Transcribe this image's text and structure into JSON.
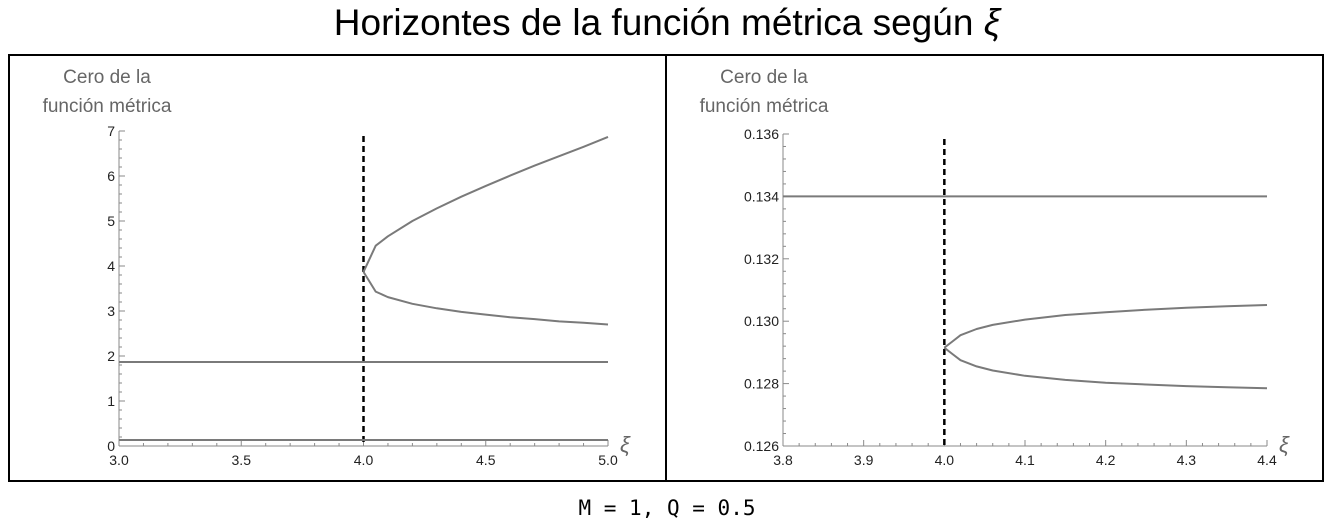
{
  "title_prefix": "Horizontes de la función métrica según ",
  "title_symbol": "ξ",
  "caption": "M = 1, Q = 0.5",
  "colors": {
    "curve": "#7a7a7a",
    "axis": "#8a8a8a",
    "label": "#666666",
    "dashed": "#000000"
  },
  "chart_data": [
    {
      "type": "line",
      "ylabel_lines": [
        "Cero de la",
        "función métrica"
      ],
      "xlabel": "ξ",
      "xlim": [
        3.0,
        5.0
      ],
      "ylim": [
        0,
        7
      ],
      "xticks": [
        3.0,
        3.5,
        4.0,
        4.5,
        5.0
      ],
      "xtick_labels": [
        "3.0",
        "3.5",
        "4.0",
        "4.5",
        "5.0"
      ],
      "yticks": [
        0,
        1,
        2,
        3,
        4,
        5,
        6,
        7
      ],
      "ytick_labels": [
        "0",
        "1",
        "2",
        "3",
        "4",
        "5",
        "6",
        "7"
      ],
      "vline_x": 4.0,
      "series": [
        {
          "x": [
            3.0,
            5.0
          ],
          "y": [
            1.866,
            1.866
          ]
        },
        {
          "x": [
            3.0,
            5.0
          ],
          "y": [
            0.134,
            0.134
          ]
        },
        {
          "x": [
            4.0,
            4.05,
            4.1,
            4.2,
            4.3,
            4.4,
            4.5,
            4.6,
            4.7,
            4.8,
            4.9,
            5.0
          ],
          "y": [
            3.87,
            4.45,
            4.66,
            5.0,
            5.28,
            5.54,
            5.78,
            6.01,
            6.23,
            6.44,
            6.65,
            6.87
          ]
        },
        {
          "x": [
            4.0,
            4.05,
            4.1,
            4.2,
            4.3,
            4.4,
            4.5,
            4.6,
            4.7,
            4.8,
            4.9,
            5.0
          ],
          "y": [
            3.87,
            3.43,
            3.31,
            3.16,
            3.06,
            2.98,
            2.92,
            2.86,
            2.82,
            2.77,
            2.74,
            2.7
          ]
        }
      ]
    },
    {
      "type": "line",
      "ylabel_lines": [
        "Cero de la",
        "función métrica"
      ],
      "xlabel": "ξ",
      "xlim": [
        3.8,
        4.4
      ],
      "ylim": [
        0.126,
        0.136
      ],
      "xticks": [
        3.8,
        3.9,
        4.0,
        4.1,
        4.2,
        4.3,
        4.4
      ],
      "xtick_labels": [
        "3.8",
        "3.9",
        "4.0",
        "4.1",
        "4.2",
        "4.3",
        "4.4"
      ],
      "yticks": [
        0.126,
        0.128,
        0.13,
        0.132,
        0.134,
        0.136
      ],
      "ytick_labels": [
        "0.126",
        "0.128",
        "0.130",
        "0.132",
        "0.134",
        "0.136"
      ],
      "vline_x": 4.0,
      "series": [
        {
          "x": [
            3.8,
            4.4
          ],
          "y": [
            0.134,
            0.134
          ]
        },
        {
          "x": [
            4.0,
            4.01,
            4.02,
            4.04,
            4.06,
            4.1,
            4.15,
            4.2,
            4.25,
            4.3,
            4.35,
            4.4
          ],
          "y": [
            0.12915,
            0.12935,
            0.12955,
            0.12975,
            0.12988,
            0.13005,
            0.1302,
            0.13029,
            0.13037,
            0.13043,
            0.13048,
            0.13052
          ]
        },
        {
          "x": [
            4.0,
            4.01,
            4.02,
            4.04,
            4.06,
            4.1,
            4.15,
            4.2,
            4.25,
            4.3,
            4.35,
            4.4
          ],
          "y": [
            0.12915,
            0.12895,
            0.12875,
            0.12855,
            0.12842,
            0.12825,
            0.12812,
            0.12803,
            0.12797,
            0.12792,
            0.12788,
            0.12785
          ]
        }
      ]
    }
  ]
}
